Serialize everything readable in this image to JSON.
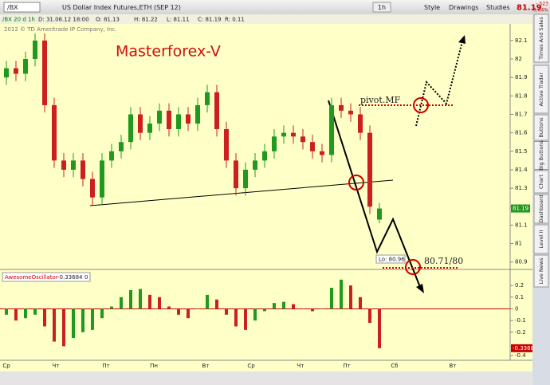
{
  "toolbar": {
    "symbol": "/BX",
    "description": "US Dollar Index Futures,ETH (SEP 12)",
    "interval": "1h",
    "buttons": [
      "Style",
      "Drawings",
      "Studies"
    ],
    "last": "81.19",
    "change": "-.523",
    "change_pct": "-0.64%"
  },
  "info_bar": [
    "/BX 20 d 1h",
    "D: 31.08.12 18:00",
    "O: 81.13",
    "H: 81.22",
    "L: 81.11",
    "C: 81.19",
    "R: 0.11"
  ],
  "copyright": "2012 © TD Ameritrade IP Company, Inc.",
  "side_tabs": [
    "Times And Sales",
    "Active Trader",
    "Buttons",
    "Big Buttons",
    "Chart",
    "Dashboard",
    "Level II",
    "Live News"
  ],
  "chart_data": [
    {
      "type": "candlestick",
      "watermark": "Masterforex-V",
      "annotations": [
        "pivot.MF",
        "80.71/80",
        "Lo: 80.96"
      ],
      "open": [
        81.9,
        81.95,
        81.92,
        82.0,
        82.1,
        81.75,
        81.45,
        81.4,
        81.45,
        81.35,
        81.25,
        81.45,
        81.5,
        81.55,
        81.7,
        81.6,
        81.65,
        81.72,
        81.62,
        81.7,
        81.65,
        81.75,
        81.82,
        81.62,
        81.45,
        81.3,
        81.4,
        81.45,
        81.5,
        81.58,
        81.6,
        81.58,
        81.55,
        81.5,
        81.48,
        81.75,
        81.72,
        81.7,
        81.6,
        81.13
      ],
      "high": [
        81.99,
        81.99,
        82.04,
        82.14,
        82.14,
        81.79,
        81.49,
        81.49,
        81.49,
        81.39,
        81.49,
        81.54,
        81.59,
        81.74,
        81.74,
        81.69,
        81.76,
        81.76,
        81.74,
        81.74,
        81.79,
        81.86,
        81.86,
        81.66,
        81.49,
        81.44,
        81.49,
        81.54,
        81.62,
        81.64,
        81.64,
        81.62,
        81.59,
        81.54,
        81.79,
        81.79,
        81.76,
        81.74,
        81.64,
        81.22
      ],
      "low": [
        81.86,
        81.88,
        81.88,
        81.96,
        81.71,
        81.41,
        81.36,
        81.36,
        81.31,
        81.21,
        81.21,
        81.41,
        81.46,
        81.51,
        81.56,
        81.56,
        81.61,
        81.58,
        81.58,
        81.61,
        81.61,
        81.71,
        81.58,
        81.41,
        81.26,
        81.26,
        81.36,
        81.41,
        81.46,
        81.54,
        81.54,
        81.51,
        81.46,
        81.44,
        81.44,
        81.68,
        81.66,
        81.56,
        81.16,
        81.11
      ],
      "close": [
        81.95,
        81.92,
        82.0,
        82.1,
        81.75,
        81.45,
        81.4,
        81.45,
        81.35,
        81.25,
        81.45,
        81.5,
        81.55,
        81.7,
        81.6,
        81.65,
        81.72,
        81.62,
        81.7,
        81.65,
        81.75,
        81.82,
        81.62,
        81.45,
        81.3,
        81.4,
        81.45,
        81.5,
        81.58,
        81.6,
        81.58,
        81.55,
        81.5,
        81.48,
        81.75,
        81.72,
        81.7,
        81.6,
        81.2,
        81.19
      ],
      "up_color": "#1f9a1f",
      "down_color": "#cc1f1f",
      "ylim": [
        80.86,
        82.19
      ],
      "yticks": [
        80.9,
        81,
        81.1,
        81.2,
        81.3,
        81.4,
        81.5,
        81.6,
        81.7,
        81.8,
        81.9,
        82,
        82.1
      ],
      "last_label": "81.19",
      "x_labels": [
        "Ср",
        "Чт",
        "Пт",
        "Пн",
        "Вт",
        "Ср",
        "Чт",
        "Пт",
        "Сб",
        "Вт"
      ]
    },
    {
      "type": "bar",
      "title": "AwesomeOscillator",
      "value_text": "-0.33684",
      "param": "0",
      "values": [
        -0.05,
        -0.1,
        -0.08,
        -0.05,
        -0.15,
        -0.28,
        -0.32,
        -0.25,
        -0.2,
        -0.18,
        -0.08,
        0.02,
        0.1,
        0.16,
        0.17,
        0.12,
        0.1,
        0.02,
        -0.05,
        -0.08,
        0,
        0.12,
        0.08,
        -0.05,
        -0.15,
        -0.18,
        -0.1,
        -0.02,
        0.05,
        0.06,
        0.04,
        0,
        -0.02,
        0,
        0.18,
        0.25,
        0.2,
        0.1,
        -0.12,
        -0.3368
      ],
      "up_color": "#1f9a1f",
      "down_color": "#cc1f1f",
      "ylim": [
        -0.44,
        0.31
      ],
      "yticks": [
        -0.4,
        -0.2,
        -0.1,
        0,
        0.1,
        0.2
      ],
      "last_label": "-0.3368"
    }
  ]
}
